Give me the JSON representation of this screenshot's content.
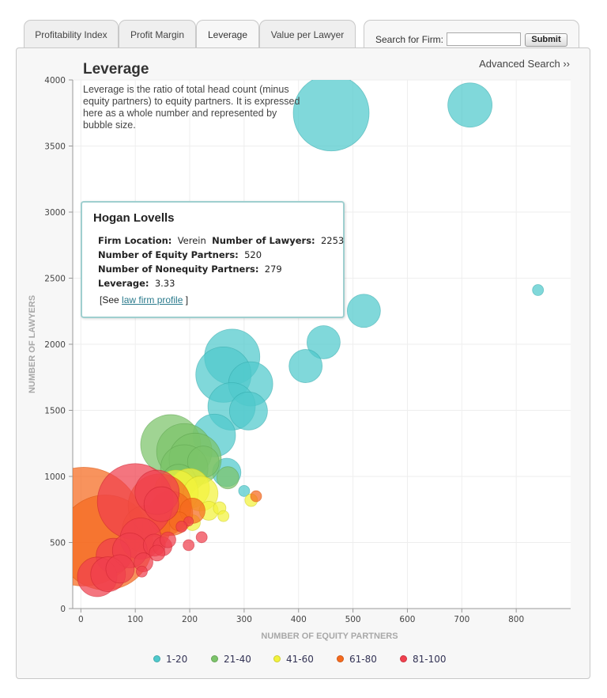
{
  "tabs": [
    {
      "label": "Profitability Index",
      "active": false
    },
    {
      "label": "Profit Margin",
      "active": false
    },
    {
      "label": "Leverage",
      "active": true
    },
    {
      "label": "Value per Lawyer",
      "active": false
    }
  ],
  "search": {
    "label": "Search for Firm:",
    "value": "",
    "placeholder": "",
    "submit_label": "Submit"
  },
  "advanced_search_label": "Advanced Search ››",
  "title": "Leverage",
  "description": "Leverage is the ratio of total head count (minus equity partners) to equity partners. It is expressed here as a whole number and represented by bubble size.",
  "tooltip": {
    "firm": "Hogan Lovells",
    "location_label": "Firm Location:",
    "location_value": "Verein",
    "lawyers_label": "Number of Lawyers:",
    "lawyers_value": "2253",
    "equity_label": "Number of Equity Partners:",
    "equity_value": "520",
    "nonequity_label": "Number of Nonequity Partners:",
    "nonequity_value": "279",
    "leverage_label": "Leverage:",
    "leverage_value": "3.33",
    "see_prefix": "[See ",
    "link_label": "law firm profile",
    "see_suffix": " ]"
  },
  "colors": {
    "1-20": "#4fc9cc",
    "21-40": "#7cc46a",
    "41-60": "#f2f23c",
    "61-80": "#f56a1e",
    "81-100": "#f0404e"
  },
  "chart_data": {
    "type": "scatter",
    "xlabel": "NUMBER OF EQUITY PARTNERS",
    "ylabel": "NUMBER OF LAWYERS",
    "xlim": [
      -15,
      900
    ],
    "ylim": [
      0,
      4000
    ],
    "xticks": [
      0,
      100,
      200,
      300,
      400,
      500,
      600,
      700,
      800
    ],
    "yticks": [
      0,
      500,
      1000,
      1500,
      2000,
      2500,
      3000,
      3500,
      4000
    ],
    "grid": true,
    "legend_position": "bottom",
    "legend": [
      "1-20",
      "21-40",
      "41-60",
      "61-80",
      "81-100"
    ],
    "bubble_size": "leverage",
    "points": [
      {
        "x": 460,
        "y": 3750,
        "r": 48,
        "g": "1-20"
      },
      {
        "x": 715,
        "y": 3810,
        "r": 28,
        "g": "1-20"
      },
      {
        "x": 840,
        "y": 2410,
        "r": 7,
        "g": "1-20"
      },
      {
        "x": 520,
        "y": 2253,
        "r": 21,
        "g": "1-20"
      },
      {
        "x": 446,
        "y": 2015,
        "r": 21,
        "g": "1-20"
      },
      {
        "x": 413,
        "y": 1835,
        "r": 21,
        "g": "1-20"
      },
      {
        "x": 278,
        "y": 1905,
        "r": 35,
        "g": "1-20"
      },
      {
        "x": 262,
        "y": 1770,
        "r": 35,
        "g": "1-20"
      },
      {
        "x": 312,
        "y": 1700,
        "r": 28,
        "g": "1-20"
      },
      {
        "x": 277,
        "y": 1530,
        "r": 30,
        "g": "1-20"
      },
      {
        "x": 308,
        "y": 1495,
        "r": 24,
        "g": "1-20"
      },
      {
        "x": 245,
        "y": 1310,
        "r": 27,
        "g": "1-20"
      },
      {
        "x": 300,
        "y": 890,
        "r": 7,
        "g": "1-20"
      },
      {
        "x": 268,
        "y": 1030,
        "r": 18,
        "g": "1-20"
      },
      {
        "x": 165,
        "y": 1240,
        "r": 38,
        "g": "21-40"
      },
      {
        "x": 190,
        "y": 1190,
        "r": 35,
        "g": "21-40"
      },
      {
        "x": 210,
        "y": 1130,
        "r": 33,
        "g": "21-40"
      },
      {
        "x": 190,
        "y": 1060,
        "r": 30,
        "g": "21-40"
      },
      {
        "x": 225,
        "y": 1110,
        "r": 20,
        "g": "21-40"
      },
      {
        "x": 270,
        "y": 990,
        "r": 14,
        "g": "21-40"
      },
      {
        "x": 180,
        "y": 960,
        "r": 22,
        "g": "21-40"
      },
      {
        "x": 200,
        "y": 910,
        "r": 25,
        "g": "41-60"
      },
      {
        "x": 175,
        "y": 880,
        "r": 28,
        "g": "41-60"
      },
      {
        "x": 220,
        "y": 870,
        "r": 22,
        "g": "41-60"
      },
      {
        "x": 160,
        "y": 790,
        "r": 18,
        "g": "41-60"
      },
      {
        "x": 235,
        "y": 740,
        "r": 12,
        "g": "41-60"
      },
      {
        "x": 255,
        "y": 760,
        "r": 8,
        "g": "41-60"
      },
      {
        "x": 262,
        "y": 700,
        "r": 7,
        "g": "41-60"
      },
      {
        "x": 313,
        "y": 820,
        "r": 8,
        "g": "41-60"
      },
      {
        "x": 205,
        "y": 650,
        "r": 10,
        "g": "41-60"
      },
      {
        "x": 5,
        "y": 620,
        "r": 75,
        "g": "61-80"
      },
      {
        "x": 45,
        "y": 500,
        "r": 60,
        "g": "61-80"
      },
      {
        "x": 145,
        "y": 780,
        "r": 40,
        "g": "61-80"
      },
      {
        "x": 120,
        "y": 600,
        "r": 30,
        "g": "61-80"
      },
      {
        "x": 165,
        "y": 720,
        "r": 28,
        "g": "61-80"
      },
      {
        "x": 205,
        "y": 740,
        "r": 16,
        "g": "61-80"
      },
      {
        "x": 180,
        "y": 660,
        "r": 12,
        "g": "61-80"
      },
      {
        "x": 322,
        "y": 850,
        "r": 7,
        "g": "61-80"
      },
      {
        "x": 100,
        "y": 810,
        "r": 48,
        "g": "81-100"
      },
      {
        "x": 140,
        "y": 880,
        "r": 28,
        "g": "81-100"
      },
      {
        "x": 148,
        "y": 790,
        "r": 22,
        "g": "81-100"
      },
      {
        "x": 110,
        "y": 530,
        "r": 26,
        "g": "81-100"
      },
      {
        "x": 60,
        "y": 400,
        "r": 22,
        "g": "81-100"
      },
      {
        "x": 90,
        "y": 440,
        "r": 22,
        "g": "81-100"
      },
      {
        "x": 30,
        "y": 240,
        "r": 25,
        "g": "81-100"
      },
      {
        "x": 50,
        "y": 260,
        "r": 22,
        "g": "81-100"
      },
      {
        "x": 72,
        "y": 300,
        "r": 18,
        "g": "81-100"
      },
      {
        "x": 135,
        "y": 480,
        "r": 14,
        "g": "81-100"
      },
      {
        "x": 150,
        "y": 470,
        "r": 12,
        "g": "81-100"
      },
      {
        "x": 160,
        "y": 520,
        "r": 10,
        "g": "81-100"
      },
      {
        "x": 115,
        "y": 350,
        "r": 12,
        "g": "81-100"
      },
      {
        "x": 140,
        "y": 420,
        "r": 10,
        "g": "81-100"
      },
      {
        "x": 112,
        "y": 280,
        "r": 7,
        "g": "81-100"
      },
      {
        "x": 198,
        "y": 480,
        "r": 7,
        "g": "81-100"
      },
      {
        "x": 222,
        "y": 540,
        "r": 7,
        "g": "81-100"
      },
      {
        "x": 198,
        "y": 660,
        "r": 6,
        "g": "81-100"
      },
      {
        "x": 185,
        "y": 620,
        "r": 7,
        "g": "81-100"
      }
    ]
  }
}
